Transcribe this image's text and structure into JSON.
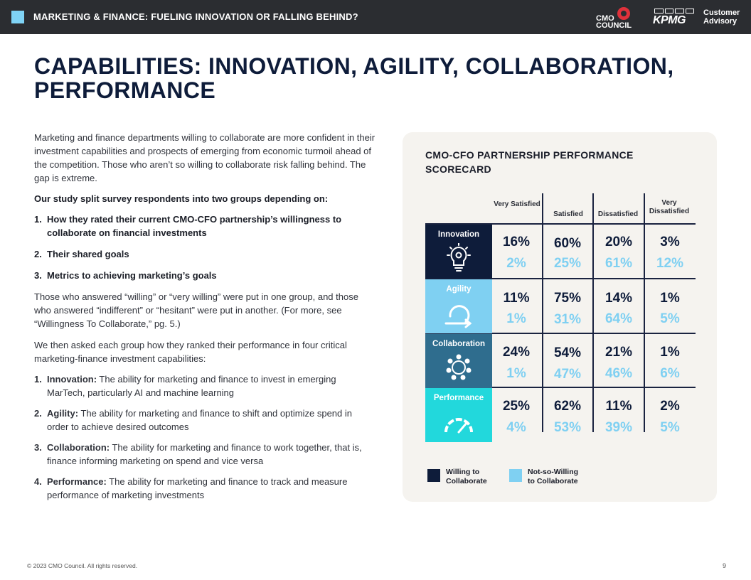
{
  "header": {
    "title": "MARKETING & FINANCE: FUELING INNOVATION OR FALLING BEHIND?",
    "logo_cmo_line1": "CMO",
    "logo_cmo_line2": "COUNCIL",
    "logo_kpmg": "KPMG",
    "logo_ca_line1": "Customer",
    "logo_ca_line2": "Advisory"
  },
  "page_title": "CAPABILITIES: INNOVATION, AGILITY, COLLABORATION, PERFORMANCE",
  "body": {
    "intro": "Marketing and finance departments willing to collaborate are more confident in their investment capabilities and prospects of emerging from economic turmoil ahead of the competition. Those who aren’t so willing to collaborate risk falling behind. The gap is extreme.",
    "split_heading": "Our study split survey respondents into two groups depending on:",
    "split_items": [
      {
        "num": "1.",
        "text": "How they rated their current CMO-CFO partnership’s willingness to collaborate on financial investments"
      },
      {
        "num": "2.",
        "text": "Their shared goals"
      },
      {
        "num": "3.",
        "text": "Metrics to achieving marketing’s goals"
      }
    ],
    "groups_text": "Those who answered “willing” or “very willing” were put in one group, and those who answered “indifferent” or “hesitant” were put in another. (For more, see “Willingness To Collaborate,” pg. 5.)",
    "ranking_text": "We then asked each group how they ranked their performance in four critical marketing-finance investment capabilities:",
    "capabilities": [
      {
        "num": "1.",
        "term": "Innovation:",
        "text": " The ability for marketing and finance to invest in emerging MarTech, particularly AI and machine learning"
      },
      {
        "num": "2.",
        "term": "Agility:",
        "text": " The ability for marketing and finance to shift and optimize spend in order to achieve desired outcomes"
      },
      {
        "num": "3.",
        "term": "Collaboration:",
        "text": " The ability for marketing and finance to work together, that is, finance informing marketing on spend and vice versa"
      },
      {
        "num": "4.",
        "term": "Performance:",
        "text": " The ability for marketing and finance to track and measure performance of marketing investments"
      }
    ]
  },
  "scorecard": {
    "title": "CMO-CFO PARTNERSHIP PERFORMANCE SCORECARD",
    "columns": [
      "Very Satisfied",
      "Satisfied",
      "Dissatisfied",
      "Very Dissatisfied"
    ],
    "rows": [
      {
        "label": "Innovation",
        "icon": "lightbulb-gear-icon",
        "color": "#0e1c3a",
        "willing": [
          "16%",
          "60%",
          "20%",
          "3%"
        ],
        "not_willing": [
          "2%",
          "25%",
          "61%",
          "12%"
        ]
      },
      {
        "label": "Agility",
        "icon": "cycle-arrow-icon",
        "color": "#7fd0f2",
        "willing": [
          "11%",
          "75%",
          "14%",
          "1%"
        ],
        "not_willing": [
          "1%",
          "31%",
          "64%",
          "5%"
        ]
      },
      {
        "label": "Collaboration",
        "icon": "people-circle-icon",
        "color": "#2f6d8e",
        "willing": [
          "24%",
          "54%",
          "21%",
          "1%"
        ],
        "not_willing": [
          "1%",
          "47%",
          "46%",
          "6%"
        ]
      },
      {
        "label": "Performance",
        "icon": "gauge-icon",
        "color": "#22d8dc",
        "willing": [
          "25%",
          "62%",
          "11%",
          "2%"
        ],
        "not_willing": [
          "4%",
          "53%",
          "39%",
          "5%"
        ]
      }
    ],
    "legend": [
      {
        "label": "Willing to Collaborate",
        "line1": "Willing to",
        "line2": "Collaborate",
        "color": "#0e1c3a"
      },
      {
        "label": "Not-so-Willing to Collaborate",
        "line1": "Not-so-Willing",
        "line2": "to Collaborate",
        "color": "#7fd0f2"
      }
    ]
  },
  "footer": {
    "copyright": "© 2023 CMO Council. All rights reserved.",
    "page_number": "9"
  }
}
